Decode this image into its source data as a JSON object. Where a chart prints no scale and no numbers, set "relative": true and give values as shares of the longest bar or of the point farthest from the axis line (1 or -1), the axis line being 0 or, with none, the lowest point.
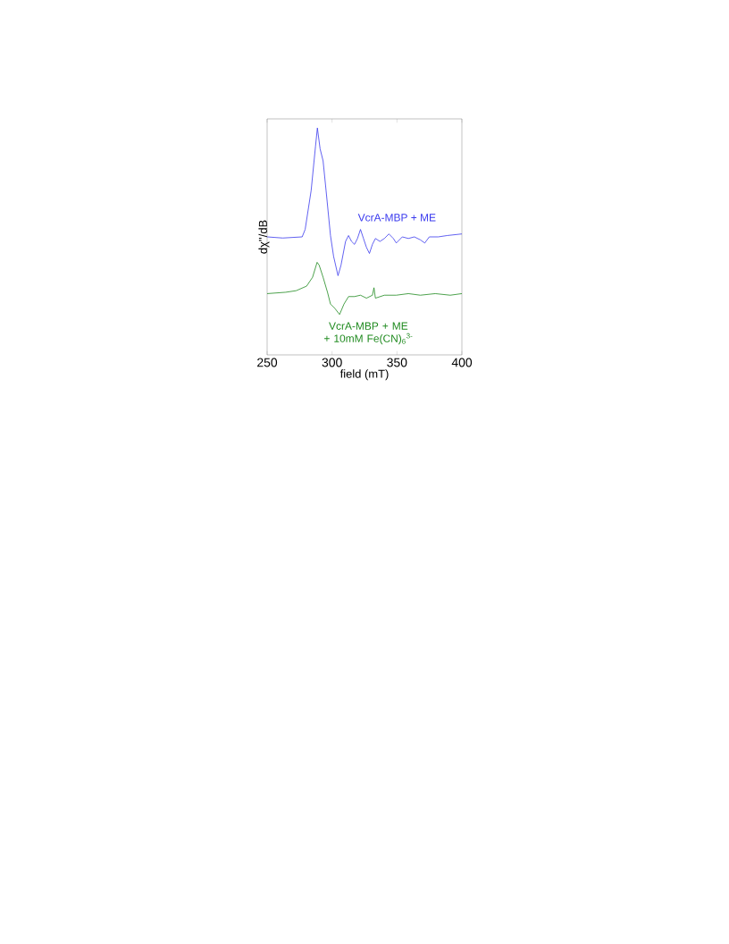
{
  "chart_data": {
    "type": "line",
    "relative": true,
    "xlabel": "field (mT)",
    "ylabel": "dχ''/dB",
    "xlim": [
      250,
      400
    ],
    "xticks": [
      250,
      300,
      350,
      400
    ],
    "grid": false,
    "series": [
      {
        "name": "VcrA-MBP + ME",
        "color": "#3a3aee",
        "x": [
          250,
          262,
          277,
          279.3,
          283.9,
          287.3,
          288.7,
          290.8,
          293.1,
          295.4,
          298.8,
          301.2,
          304.6,
          306.9,
          310.4,
          312.7,
          315,
          317.3,
          319.6,
          321.9,
          324.2,
          326.5,
          328.8,
          331.1,
          333.4,
          336.9,
          340.3,
          343.8,
          347.2,
          349.5,
          354.1,
          358.8,
          363.4,
          368,
          371.4,
          374.9,
          381.8,
          388.7,
          400
        ],
        "values": [
          0.52,
          0.515,
          0.52,
          0.553,
          0.724,
          0.921,
          1.0,
          0.908,
          0.855,
          0.724,
          0.526,
          0.434,
          0.349,
          0.395,
          0.5,
          0.526,
          0.5,
          0.487,
          0.513,
          0.553,
          0.513,
          0.474,
          0.447,
          0.487,
          0.513,
          0.5,
          0.513,
          0.533,
          0.513,
          0.493,
          0.52,
          0.513,
          0.52,
          0.507,
          0.493,
          0.52,
          0.52,
          0.526,
          0.533
        ]
      },
      {
        "name": "VcrA-MBP + ME + 10mM Fe(CN)$_{6}$$^{3-}$",
        "color": "#1f8a1f",
        "x": [
          250,
          264.3,
          272.4,
          280.4,
          285,
          288.5,
          290.1,
          293.1,
          296.5,
          298.8,
          302.3,
          305.8,
          309.2,
          312.7,
          317.3,
          321.9,
          326.5,
          331.1,
          332.3,
          333.4,
          340.3,
          349.5,
          358.8,
          368,
          379.5,
          391,
          400
        ],
        "values": [
          0.27,
          0.276,
          0.283,
          0.303,
          0.342,
          0.408,
          0.395,
          0.342,
          0.276,
          0.224,
          0.204,
          0.178,
          0.224,
          0.257,
          0.257,
          0.263,
          0.25,
          0.263,
          0.296,
          0.25,
          0.263,
          0.263,
          0.27,
          0.263,
          0.27,
          0.263,
          0.27
        ]
      }
    ]
  }
}
